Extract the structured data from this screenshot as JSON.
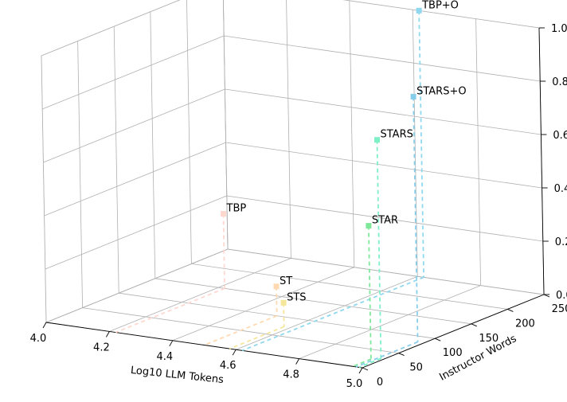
{
  "chart_data": {
    "type": "scatter",
    "title": "",
    "xlabel": "Log10 LLM Tokens",
    "ylabel": "Instructor Words",
    "zlabel": "",
    "xlim": [
      4.0,
      5.0
    ],
    "ylim": [
      0,
      250
    ],
    "zlim": [
      0.0,
      1.0
    ],
    "x_ticks": [
      "4.0",
      "4.2",
      "4.4",
      "4.6",
      "4.8",
      "5.0"
    ],
    "y_ticks": [
      "0",
      "50",
      "100",
      "150",
      "200",
      "250"
    ],
    "z_ticks": [
      "0.0",
      "0.2",
      "0.4",
      "0.6",
      "0.8",
      "1.0"
    ],
    "grid": true,
    "points": [
      {
        "label": "TBP",
        "x": 4.22,
        "y": 150,
        "z": 0.28,
        "color": "#ffd8d0"
      },
      {
        "label": "ST",
        "x": 4.5,
        "y": 100,
        "z": 0.11,
        "color": "#ffd9b0"
      },
      {
        "label": "STS",
        "x": 4.58,
        "y": 75,
        "z": 0.09,
        "color": "#f5e69a"
      },
      {
        "label": "TBP+O",
        "x": 4.62,
        "y": 250,
        "z": 1.0,
        "color": "#8fd8f0"
      },
      {
        "label": "STAR",
        "x": 4.97,
        "y": 25,
        "z": 0.5,
        "color": "#7fe89a"
      },
      {
        "label": "STARS",
        "x": 4.99,
        "y": 30,
        "z": 0.82,
        "color": "#7fefc6"
      },
      {
        "label": "STARS+O",
        "x": 4.98,
        "y": 85,
        "z": 0.92,
        "color": "#87ceeb"
      }
    ]
  }
}
